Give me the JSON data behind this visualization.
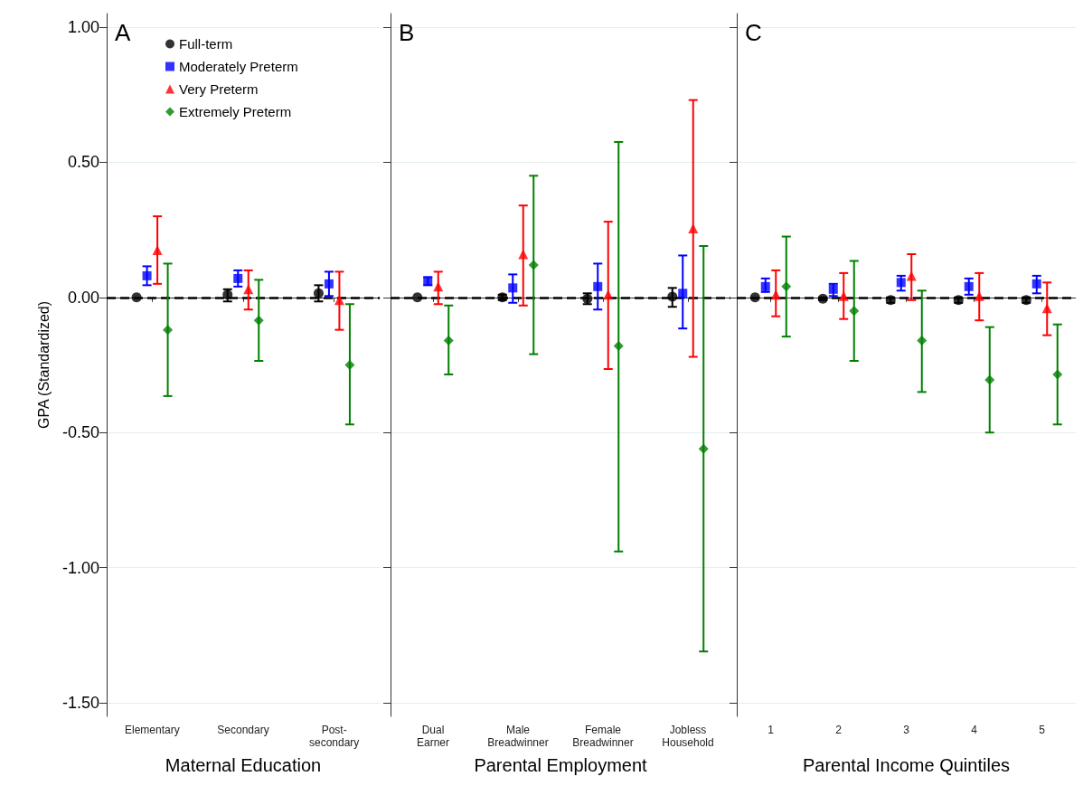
{
  "chart_data": [
    {
      "type": "scatter",
      "title": "A",
      "xlabel": "Maternal Education",
      "ylabel": "GPA (Standardized)",
      "categories": [
        "Elementary",
        "Secondary",
        "Post-\nsecondary"
      ],
      "ylim": [
        -1.55,
        1.05
      ],
      "yticks": [
        {
          "value": 1,
          "label": "1.00"
        },
        {
          "value": 0.5,
          "label": "0.50"
        },
        {
          "value": 0,
          "label": "0.00"
        },
        {
          "value": -0.5,
          "label": "-0.50"
        },
        {
          "value": -1,
          "label": "-1.00"
        },
        {
          "value": -1.5,
          "label": "-1.50"
        }
      ],
      "grid": "y",
      "legend": "top left",
      "ref_lines": [
        {
          "axis": "y",
          "value": 0,
          "color": "#000000",
          "line_style": "dashed"
        }
      ],
      "series": [
        {
          "name": "Full-term",
          "color": "#000000",
          "marker": "circle",
          "values": [
            0,
            0.01,
            0.015
          ],
          "errors": [
            null,
            [
              -0.015,
              0.03
            ],
            [
              -0.015,
              0.045
            ]
          ]
        },
        {
          "name": "Moderately Preterm",
          "color": "#0000ff",
          "marker": "square",
          "values": [
            0.08,
            0.07,
            0.05
          ],
          "errors": [
            [
              0.045,
              0.115
            ],
            [
              0.04,
              0.1
            ],
            [
              0.005,
              0.095
            ]
          ]
        },
        {
          "name": "Very Preterm",
          "color": "#ff0000",
          "marker": "triangle",
          "values": [
            0.175,
            0.03,
            -0.01
          ],
          "errors": [
            [
              0.05,
              0.3
            ],
            [
              -0.045,
              0.1
            ],
            [
              -0.12,
              0.095
            ]
          ]
        },
        {
          "name": "Extremely Preterm",
          "color": "#008000",
          "marker": "diamond",
          "values": [
            -0.12,
            -0.085,
            -0.25
          ],
          "errors": [
            [
              -0.365,
              0.125
            ],
            [
              -0.235,
              0.065
            ],
            [
              -0.47,
              -0.025
            ]
          ]
        }
      ]
    },
    {
      "type": "scatter",
      "title": "B",
      "xlabel": "Parental Employment",
      "categories": [
        "Dual\nEarner",
        "Male\nBreadwinner",
        "Female\nBreadwinner",
        "Jobless\nHousehold"
      ],
      "ylim": [
        -1.55,
        1.05
      ],
      "yticks": [
        {
          "value": 1,
          "label": null
        },
        {
          "value": 0.5,
          "label": null
        },
        {
          "value": 0,
          "label": null
        },
        {
          "value": -0.5,
          "label": null
        },
        {
          "value": -1,
          "label": null
        },
        {
          "value": -1.5,
          "label": null
        }
      ],
      "grid": "y",
      "tick_labels": "x",
      "ref_lines": [
        {
          "axis": "y",
          "value": 0,
          "color": "#000000",
          "line_style": "dashed"
        }
      ],
      "series": [
        {
          "color": "#000000",
          "marker": "circle",
          "values": [
            0,
            0,
            -0.005,
            0.003
          ],
          "errors": [
            null,
            [
              -0.01,
              0.01
            ],
            [
              -0.025,
              0.015
            ],
            [
              -0.035,
              0.035
            ]
          ]
        },
        {
          "color": "#0000ff",
          "marker": "square",
          "values": [
            0.06,
            0.035,
            0.04,
            0.015
          ],
          "errors": [
            [
              0.045,
              0.075
            ],
            [
              -0.02,
              0.085
            ],
            [
              -0.045,
              0.125
            ],
            [
              -0.115,
              0.155
            ]
          ]
        },
        {
          "color": "#ff0000",
          "marker": "triangle",
          "values": [
            0.04,
            0.16,
            0.01,
            0.255
          ],
          "errors": [
            [
              -0.025,
              0.095
            ],
            [
              -0.03,
              0.34
            ],
            [
              -0.265,
              0.28
            ],
            [
              -0.22,
              0.73
            ]
          ]
        },
        {
          "color": "#008000",
          "marker": "diamond",
          "values": [
            -0.16,
            0.12,
            -0.18,
            -0.56
          ],
          "errors": [
            [
              -0.285,
              -0.03
            ],
            [
              -0.21,
              0.45
            ],
            [
              -0.94,
              0.575
            ],
            [
              -1.31,
              0.19
            ]
          ]
        }
      ]
    },
    {
      "type": "scatter",
      "title": "C",
      "xlabel": "Parental Income Quintiles",
      "categories": [
        "1",
        "2",
        "3",
        "4",
        "5"
      ],
      "ylim": [
        -1.55,
        1.05
      ],
      "yticks": [
        {
          "value": 1,
          "label": null
        },
        {
          "value": 0.5,
          "label": null
        },
        {
          "value": 0,
          "label": null
        },
        {
          "value": -0.5,
          "label": null
        },
        {
          "value": -1,
          "label": null
        },
        {
          "value": -1.5,
          "label": null
        }
      ],
      "grid": "y",
      "tick_labels": "x",
      "ref_lines": [
        {
          "axis": "y",
          "value": 0,
          "color": "#000000",
          "line_style": "dashed"
        }
      ],
      "series": [
        {
          "color": "#000000",
          "marker": "circle",
          "values": [
            0,
            -0.005,
            -0.01,
            -0.01,
            -0.01
          ],
          "errors": [
            null,
            [
              -0.01,
              0
            ],
            [
              -0.02,
              0
            ],
            [
              -0.02,
              0
            ],
            [
              -0.02,
              0
            ]
          ]
        },
        {
          "color": "#0000ff",
          "marker": "square",
          "values": [
            0.04,
            0.03,
            0.055,
            0.04,
            0.05
          ],
          "errors": [
            [
              0.02,
              0.07
            ],
            [
              0.005,
              0.05
            ],
            [
              0.025,
              0.08
            ],
            [
              0.01,
              0.07
            ],
            [
              0.015,
              0.08
            ]
          ]
        },
        {
          "color": "#ff0000",
          "marker": "triangle",
          "values": [
            0.01,
            0.005,
            0.08,
            0.005,
            -0.04
          ],
          "errors": [
            [
              -0.07,
              0.1
            ],
            [
              -0.08,
              0.09
            ],
            [
              -0.01,
              0.16
            ],
            [
              -0.085,
              0.09
            ],
            [
              -0.14,
              0.055
            ]
          ]
        },
        {
          "color": "#008000",
          "marker": "diamond",
          "values": [
            0.04,
            -0.05,
            -0.16,
            -0.305,
            -0.285
          ],
          "errors": [
            [
              -0.145,
              0.225
            ],
            [
              -0.235,
              0.135
            ],
            [
              -0.35,
              0.025
            ],
            [
              -0.5,
              -0.11
            ],
            [
              -0.47,
              -0.1
            ]
          ]
        }
      ]
    }
  ]
}
